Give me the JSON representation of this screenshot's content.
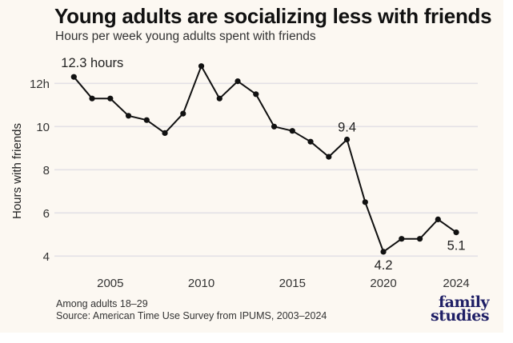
{
  "header": {
    "title": "Young adults are socializing less with friends",
    "subtitle": "Hours per week young adults spent with friends"
  },
  "footer": {
    "note": "Among adults 18–29",
    "source": "Source: American Time Use Survey from IPUMS, 2003–2024"
  },
  "logo": {
    "line1": "family",
    "line2": "studies",
    "color": "#1f1f66"
  },
  "colors": {
    "line": "#111111",
    "grid": "#e3e1e6",
    "background": "#fcf8f2",
    "text": "#333333"
  },
  "chart_data": {
    "type": "line",
    "title": "Young adults are socializing less with friends",
    "subtitle": "Hours per week young adults spent with friends",
    "xlabel": "",
    "ylabel": "Hours with friends",
    "x": [
      2003,
      2004,
      2005,
      2006,
      2007,
      2008,
      2009,
      2010,
      2011,
      2012,
      2013,
      2014,
      2015,
      2016,
      2017,
      2018,
      2019,
      2020,
      2021,
      2022,
      2023,
      2024
    ],
    "series": [
      {
        "name": "Hours with friends",
        "values": [
          12.3,
          11.3,
          11.3,
          10.5,
          10.3,
          9.7,
          10.6,
          12.8,
          11.3,
          12.1,
          11.5,
          10.0,
          9.8,
          9.3,
          8.6,
          9.4,
          6.5,
          4.2,
          4.8,
          4.8,
          5.7,
          5.1
        ]
      }
    ],
    "xlim": [
      2003,
      2024
    ],
    "ylim": [
      3.5,
      13
    ],
    "x_ticks": [
      2005,
      2010,
      2015,
      2020,
      2024
    ],
    "x_tick_labels": [
      "2005",
      "2010",
      "2015",
      "2020",
      "2024"
    ],
    "y_ticks": [
      4,
      6,
      8,
      10,
      12
    ],
    "y_tick_labels": [
      "4",
      "6",
      "8",
      "10",
      "12h"
    ],
    "grid": true,
    "legend": "none",
    "annotations": [
      {
        "x": 2003,
        "value": 12.3,
        "text": "12.3 hours",
        "position": "above"
      },
      {
        "x": 2018,
        "value": 9.4,
        "text": "9.4",
        "position": "above"
      },
      {
        "x": 2020,
        "value": 4.2,
        "text": "4.2",
        "position": "below"
      },
      {
        "x": 2024,
        "value": 5.1,
        "text": "5.1",
        "position": "below"
      }
    ]
  }
}
